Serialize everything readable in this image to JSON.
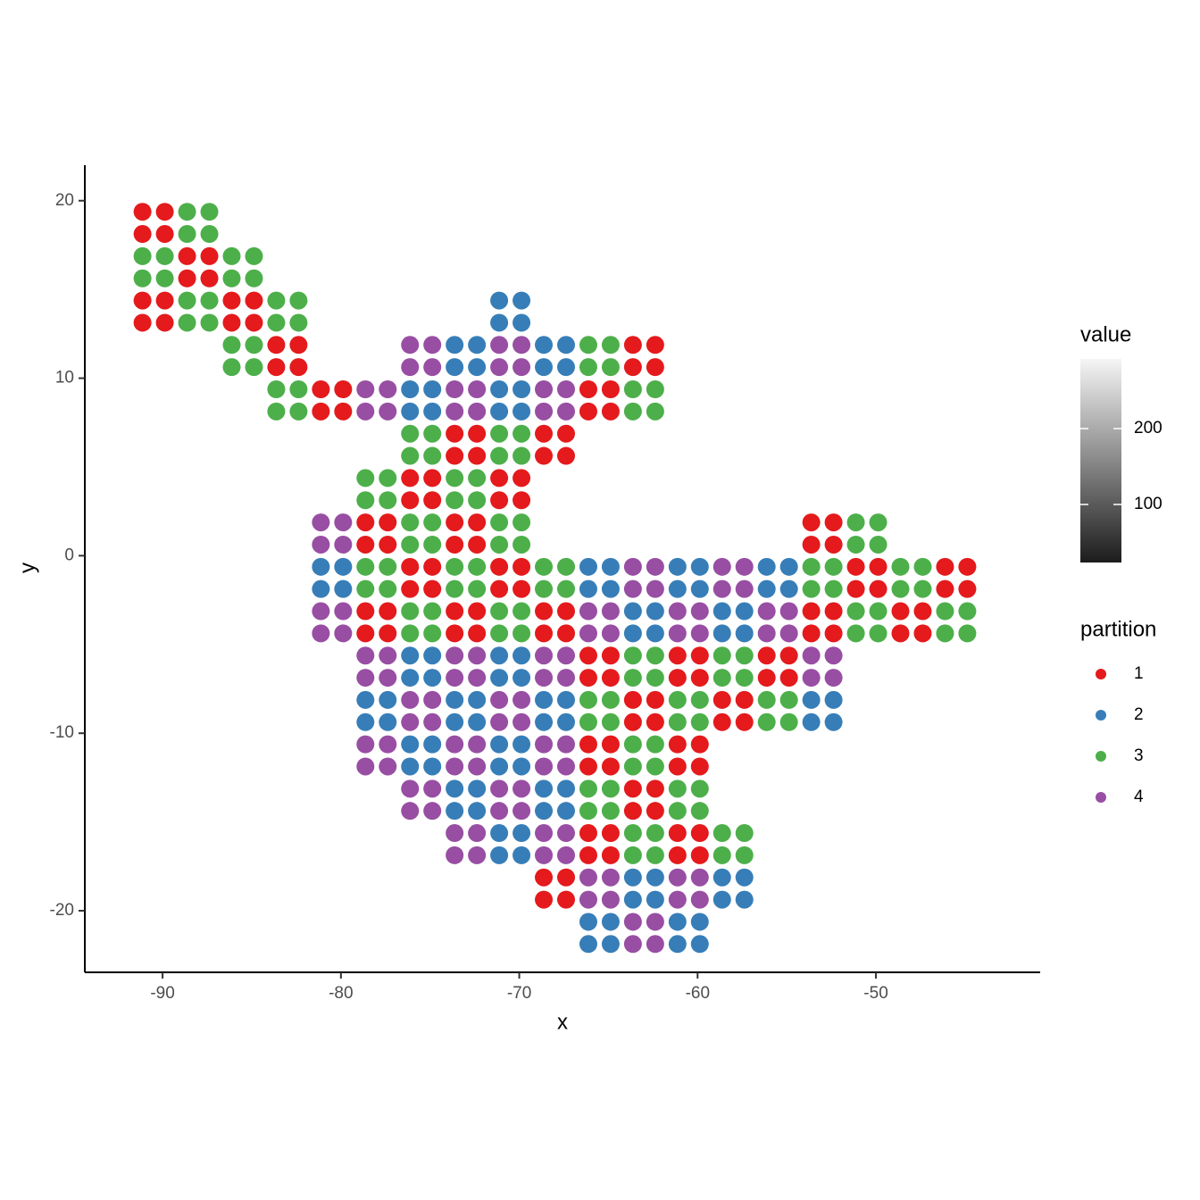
{
  "chart_data": {
    "type": "scatter",
    "x_label": "x",
    "y_label": "y",
    "xlim": [
      -94.36,
      -40.79
    ],
    "ylim": [
      -23.47,
      22.0
    ],
    "xticks": [
      -90,
      -80,
      -70,
      -60,
      -50
    ],
    "yticks": [
      -20,
      -10,
      0,
      10,
      20
    ],
    "legend_title": "partition",
    "colorbar": {
      "title": "value",
      "range": [
        23.5,
        291.8
      ],
      "ticks": [
        100,
        200
      ],
      "colors": [
        "#1c1c1c",
        "#f5f5f5"
      ]
    },
    "series": [
      {
        "name": "1",
        "color": "#E41A1C",
        "x": [
          -91.125,
          -89.875,
          -91.125,
          -89.875,
          -88.625,
          -87.375,
          -88.625,
          -87.375,
          -86.125,
          -84.875,
          -86.125,
          -84.875,
          -91.125,
          -89.875,
          -91.125,
          -89.875,
          -83.625,
          -82.375,
          -83.625,
          -82.375,
          -63.625,
          -62.375,
          -63.625,
          -62.375,
          -81.125,
          -79.875,
          -81.125,
          -79.875,
          -66.125,
          -64.875,
          -66.125,
          -64.875,
          -73.625,
          -72.375,
          -73.625,
          -72.375,
          -68.625,
          -67.375,
          -68.625,
          -67.375,
          -76.125,
          -74.875,
          -76.125,
          -74.875,
          -71.125,
          -69.875,
          -71.125,
          -69.875,
          -78.625,
          -77.375,
          -78.625,
          -77.375,
          -73.625,
          -72.375,
          -73.625,
          -72.375,
          -53.625,
          -52.375,
          -53.625,
          -52.375,
          -76.125,
          -74.875,
          -76.125,
          -74.875,
          -71.125,
          -69.875,
          -71.125,
          -69.875,
          -51.125,
          -49.875,
          -51.125,
          -49.875,
          -46.125,
          -44.875,
          -46.125,
          -44.875,
          -78.625,
          -77.375,
          -78.625,
          -77.375,
          -73.625,
          -72.375,
          -73.625,
          -72.375,
          -68.625,
          -67.375,
          -68.625,
          -67.375,
          -53.625,
          -52.375,
          -53.625,
          -52.375,
          -48.625,
          -47.375,
          -48.625,
          -47.375,
          -66.125,
          -64.875,
          -66.125,
          -64.875,
          -61.125,
          -59.875,
          -61.125,
          -59.875,
          -56.125,
          -54.875,
          -56.125,
          -54.875,
          -63.625,
          -62.375,
          -63.625,
          -62.375,
          -58.625,
          -57.375,
          -58.625,
          -57.375,
          -66.125,
          -64.875,
          -66.125,
          -64.875,
          -61.125,
          -59.875,
          -61.125,
          -59.875,
          -63.625,
          -62.375,
          -63.625,
          -62.375,
          -66.125,
          -64.875,
          -66.125,
          -64.875,
          -61.125,
          -59.875,
          -61.125,
          -59.875,
          -68.625,
          -67.375,
          -68.625,
          -67.375
        ],
        "y": [
          19.375,
          19.375,
          18.125,
          18.125,
          16.875,
          16.875,
          15.625,
          15.625,
          14.375,
          14.375,
          13.125,
          13.125,
          14.375,
          14.375,
          13.125,
          13.125,
          11.875,
          11.875,
          10.625,
          10.625,
          11.875,
          11.875,
          10.625,
          10.625,
          9.375,
          9.375,
          8.125,
          8.125,
          9.375,
          9.375,
          8.125,
          8.125,
          6.875,
          6.875,
          5.625,
          5.625,
          6.875,
          6.875,
          5.625,
          5.625,
          4.375,
          4.375,
          3.125,
          3.125,
          4.375,
          4.375,
          3.125,
          3.125,
          1.875,
          1.875,
          0.625,
          0.625,
          1.875,
          1.875,
          0.625,
          0.625,
          1.875,
          1.875,
          0.625,
          0.625,
          -0.625,
          -0.625,
          -1.875,
          -1.875,
          -0.625,
          -0.625,
          -1.875,
          -1.875,
          -0.625,
          -0.625,
          -1.875,
          -1.875,
          -0.625,
          -0.625,
          -1.875,
          -1.875,
          -3.125,
          -3.125,
          -4.375,
          -4.375,
          -3.125,
          -3.125,
          -4.375,
          -4.375,
          -3.125,
          -3.125,
          -4.375,
          -4.375,
          -3.125,
          -3.125,
          -4.375,
          -4.375,
          -3.125,
          -3.125,
          -4.375,
          -4.375,
          -5.625,
          -5.625,
          -6.875,
          -6.875,
          -5.625,
          -5.625,
          -6.875,
          -6.875,
          -5.625,
          -5.625,
          -6.875,
          -6.875,
          -8.125,
          -8.125,
          -9.375,
          -9.375,
          -8.125,
          -8.125,
          -9.375,
          -9.375,
          -10.625,
          -10.625,
          -11.875,
          -11.875,
          -10.625,
          -10.625,
          -11.875,
          -11.875,
          -13.125,
          -13.125,
          -14.375,
          -14.375,
          -15.625,
          -15.625,
          -16.875,
          -16.875,
          -15.625,
          -15.625,
          -16.875,
          -16.875,
          -18.125,
          -18.125,
          -19.375,
          -19.375
        ]
      },
      {
        "name": "2",
        "color": "#377EB8",
        "x": [
          -71.125,
          -69.875,
          -71.125,
          -69.875,
          -73.625,
          -72.375,
          -73.625,
          -72.375,
          -68.625,
          -67.375,
          -68.625,
          -67.375,
          -76.125,
          -74.875,
          -76.125,
          -74.875,
          -71.125,
          -69.875,
          -71.125,
          -69.875,
          -81.125,
          -79.875,
          -81.125,
          -79.875,
          -66.125,
          -64.875,
          -66.125,
          -64.875,
          -61.125,
          -59.875,
          -61.125,
          -59.875,
          -56.125,
          -54.875,
          -56.125,
          -54.875,
          -63.625,
          -62.375,
          -63.625,
          -62.375,
          -58.625,
          -57.375,
          -58.625,
          -57.375,
          -76.125,
          -74.875,
          -76.125,
          -74.875,
          -71.125,
          -69.875,
          -71.125,
          -69.875,
          -78.625,
          -77.375,
          -78.625,
          -77.375,
          -73.625,
          -72.375,
          -73.625,
          -72.375,
          -68.625,
          -67.375,
          -68.625,
          -67.375,
          -53.625,
          -52.375,
          -53.625,
          -52.375,
          -76.125,
          -74.875,
          -76.125,
          -74.875,
          -71.125,
          -69.875,
          -71.125,
          -69.875,
          -73.625,
          -72.375,
          -73.625,
          -72.375,
          -68.625,
          -67.375,
          -68.625,
          -67.375,
          -71.125,
          -69.875,
          -71.125,
          -69.875,
          -63.625,
          -62.375,
          -63.625,
          -62.375,
          -58.625,
          -57.375,
          -58.625,
          -57.375,
          -66.125,
          -64.875,
          -66.125,
          -64.875,
          -61.125,
          -59.875,
          -61.125,
          -59.875
        ],
        "y": [
          14.375,
          14.375,
          13.125,
          13.125,
          11.875,
          11.875,
          10.625,
          10.625,
          11.875,
          11.875,
          10.625,
          10.625,
          9.375,
          9.375,
          8.125,
          8.125,
          9.375,
          9.375,
          8.125,
          8.125,
          -0.625,
          -0.625,
          -1.875,
          -1.875,
          -0.625,
          -0.625,
          -1.875,
          -1.875,
          -0.625,
          -0.625,
          -1.875,
          -1.875,
          -0.625,
          -0.625,
          -1.875,
          -1.875,
          -3.125,
          -3.125,
          -4.375,
          -4.375,
          -3.125,
          -3.125,
          -4.375,
          -4.375,
          -5.625,
          -5.625,
          -6.875,
          -6.875,
          -5.625,
          -5.625,
          -6.875,
          -6.875,
          -8.125,
          -8.125,
          -9.375,
          -9.375,
          -8.125,
          -8.125,
          -9.375,
          -9.375,
          -8.125,
          -8.125,
          -9.375,
          -9.375,
          -8.125,
          -8.125,
          -9.375,
          -9.375,
          -10.625,
          -10.625,
          -11.875,
          -11.875,
          -10.625,
          -10.625,
          -11.875,
          -11.875,
          -13.125,
          -13.125,
          -14.375,
          -14.375,
          -13.125,
          -13.125,
          -14.375,
          -14.375,
          -15.625,
          -15.625,
          -16.875,
          -16.875,
          -18.125,
          -18.125,
          -19.375,
          -19.375,
          -18.125,
          -18.125,
          -19.375,
          -19.375,
          -20.625,
          -20.625,
          -21.875,
          -21.875,
          -20.625,
          -20.625,
          -21.875,
          -21.875
        ]
      },
      {
        "name": "3",
        "color": "#4DAF4A",
        "x": [
          -88.625,
          -87.375,
          -88.625,
          -87.375,
          -91.125,
          -89.875,
          -91.125,
          -89.875,
          -86.125,
          -84.875,
          -86.125,
          -84.875,
          -88.625,
          -87.375,
          -88.625,
          -87.375,
          -83.625,
          -82.375,
          -83.625,
          -82.375,
          -86.125,
          -84.875,
          -86.125,
          -84.875,
          -66.125,
          -64.875,
          -66.125,
          -64.875,
          -83.625,
          -82.375,
          -83.625,
          -82.375,
          -63.625,
          -62.375,
          -63.625,
          -62.375,
          -76.125,
          -74.875,
          -76.125,
          -74.875,
          -71.125,
          -69.875,
          -71.125,
          -69.875,
          -78.625,
          -77.375,
          -78.625,
          -77.375,
          -73.625,
          -72.375,
          -73.625,
          -72.375,
          -76.125,
          -74.875,
          -76.125,
          -74.875,
          -71.125,
          -69.875,
          -71.125,
          -69.875,
          -51.125,
          -49.875,
          -51.125,
          -49.875,
          -78.625,
          -77.375,
          -78.625,
          -77.375,
          -73.625,
          -72.375,
          -73.625,
          -72.375,
          -68.625,
          -67.375,
          -68.625,
          -67.375,
          -53.625,
          -52.375,
          -53.625,
          -52.375,
          -48.625,
          -47.375,
          -48.625,
          -47.375,
          -76.125,
          -74.875,
          -76.125,
          -74.875,
          -71.125,
          -69.875,
          -71.125,
          -69.875,
          -51.125,
          -49.875,
          -51.125,
          -49.875,
          -46.125,
          -44.875,
          -46.125,
          -44.875,
          -63.625,
          -62.375,
          -63.625,
          -62.375,
          -58.625,
          -57.375,
          -58.625,
          -57.375,
          -66.125,
          -64.875,
          -66.125,
          -64.875,
          -61.125,
          -59.875,
          -61.125,
          -59.875,
          -56.125,
          -54.875,
          -56.125,
          -54.875,
          -63.625,
          -62.375,
          -63.625,
          -62.375,
          -66.125,
          -64.875,
          -66.125,
          -64.875,
          -61.125,
          -59.875,
          -61.125,
          -59.875,
          -63.625,
          -62.375,
          -63.625,
          -62.375,
          -58.625,
          -57.375,
          -58.625,
          -57.375
        ],
        "y": [
          19.375,
          19.375,
          18.125,
          18.125,
          16.875,
          16.875,
          15.625,
          15.625,
          16.875,
          16.875,
          15.625,
          15.625,
          14.375,
          14.375,
          13.125,
          13.125,
          14.375,
          14.375,
          13.125,
          13.125,
          11.875,
          11.875,
          10.625,
          10.625,
          11.875,
          11.875,
          10.625,
          10.625,
          9.375,
          9.375,
          8.125,
          8.125,
          9.375,
          9.375,
          8.125,
          8.125,
          6.875,
          6.875,
          5.625,
          5.625,
          6.875,
          6.875,
          5.625,
          5.625,
          4.375,
          4.375,
          3.125,
          3.125,
          4.375,
          4.375,
          3.125,
          3.125,
          1.875,
          1.875,
          0.625,
          0.625,
          1.875,
          1.875,
          0.625,
          0.625,
          1.875,
          1.875,
          0.625,
          0.625,
          -0.625,
          -0.625,
          -1.875,
          -1.875,
          -0.625,
          -0.625,
          -1.875,
          -1.875,
          -0.625,
          -0.625,
          -1.875,
          -1.875,
          -0.625,
          -0.625,
          -1.875,
          -1.875,
          -0.625,
          -0.625,
          -1.875,
          -1.875,
          -3.125,
          -3.125,
          -4.375,
          -4.375,
          -3.125,
          -3.125,
          -4.375,
          -4.375,
          -3.125,
          -3.125,
          -4.375,
          -4.375,
          -3.125,
          -3.125,
          -4.375,
          -4.375,
          -5.625,
          -5.625,
          -6.875,
          -6.875,
          -5.625,
          -5.625,
          -6.875,
          -6.875,
          -8.125,
          -8.125,
          -9.375,
          -9.375,
          -8.125,
          -8.125,
          -9.375,
          -9.375,
          -8.125,
          -8.125,
          -9.375,
          -9.375,
          -10.625,
          -10.625,
          -11.875,
          -11.875,
          -13.125,
          -13.125,
          -14.375,
          -14.375,
          -13.125,
          -13.125,
          -14.375,
          -14.375,
          -15.625,
          -15.625,
          -16.875,
          -16.875,
          -15.625,
          -15.625,
          -16.875,
          -16.875
        ]
      },
      {
        "name": "4",
        "color": "#984EA3",
        "x": [
          -76.125,
          -74.875,
          -76.125,
          -74.875,
          -71.125,
          -69.875,
          -71.125,
          -69.875,
          -78.625,
          -77.375,
          -78.625,
          -77.375,
          -73.625,
          -72.375,
          -73.625,
          -72.375,
          -68.625,
          -67.375,
          -68.625,
          -67.375,
          -81.125,
          -79.875,
          -81.125,
          -79.875,
          -63.625,
          -62.375,
          -63.625,
          -62.375,
          -58.625,
          -57.375,
          -58.625,
          -57.375,
          -81.125,
          -79.875,
          -81.125,
          -79.875,
          -66.125,
          -64.875,
          -66.125,
          -64.875,
          -61.125,
          -59.875,
          -61.125,
          -59.875,
          -56.125,
          -54.875,
          -56.125,
          -54.875,
          -78.625,
          -77.375,
          -78.625,
          -77.375,
          -73.625,
          -72.375,
          -73.625,
          -72.375,
          -68.625,
          -67.375,
          -68.625,
          -67.375,
          -53.625,
          -52.375,
          -53.625,
          -52.375,
          -76.125,
          -74.875,
          -76.125,
          -74.875,
          -71.125,
          -69.875,
          -71.125,
          -69.875,
          -78.625,
          -77.375,
          -78.625,
          -77.375,
          -73.625,
          -72.375,
          -73.625,
          -72.375,
          -68.625,
          -67.375,
          -68.625,
          -67.375,
          -76.125,
          -74.875,
          -76.125,
          -74.875,
          -71.125,
          -69.875,
          -71.125,
          -69.875,
          -73.625,
          -72.375,
          -73.625,
          -72.375,
          -68.625,
          -67.375,
          -68.625,
          -67.375,
          -66.125,
          -64.875,
          -66.125,
          -64.875,
          -61.125,
          -59.875,
          -61.125,
          -59.875,
          -63.625,
          -62.375,
          -63.625,
          -62.375
        ],
        "y": [
          11.875,
          11.875,
          10.625,
          10.625,
          11.875,
          11.875,
          10.625,
          10.625,
          9.375,
          9.375,
          8.125,
          8.125,
          9.375,
          9.375,
          8.125,
          8.125,
          9.375,
          9.375,
          8.125,
          8.125,
          1.875,
          1.875,
          0.625,
          0.625,
          -0.625,
          -0.625,
          -1.875,
          -1.875,
          -0.625,
          -0.625,
          -1.875,
          -1.875,
          -3.125,
          -3.125,
          -4.375,
          -4.375,
          -3.125,
          -3.125,
          -4.375,
          -4.375,
          -3.125,
          -3.125,
          -4.375,
          -4.375,
          -3.125,
          -3.125,
          -4.375,
          -4.375,
          -5.625,
          -5.625,
          -6.875,
          -6.875,
          -5.625,
          -5.625,
          -6.875,
          -6.875,
          -5.625,
          -5.625,
          -6.875,
          -6.875,
          -5.625,
          -5.625,
          -6.875,
          -6.875,
          -8.125,
          -8.125,
          -9.375,
          -9.375,
          -8.125,
          -8.125,
          -9.375,
          -9.375,
          -10.625,
          -10.625,
          -11.875,
          -11.875,
          -10.625,
          -10.625,
          -11.875,
          -11.875,
          -10.625,
          -10.625,
          -11.875,
          -11.875,
          -13.125,
          -13.125,
          -14.375,
          -14.375,
          -13.125,
          -13.125,
          -14.375,
          -14.375,
          -15.625,
          -15.625,
          -16.875,
          -16.875,
          -15.625,
          -15.625,
          -16.875,
          -16.875,
          -18.125,
          -18.125,
          -19.375,
          -19.375,
          -18.125,
          -18.125,
          -19.375,
          -19.375,
          -20.625,
          -20.625,
          -21.875,
          -21.875
        ]
      }
    ]
  }
}
